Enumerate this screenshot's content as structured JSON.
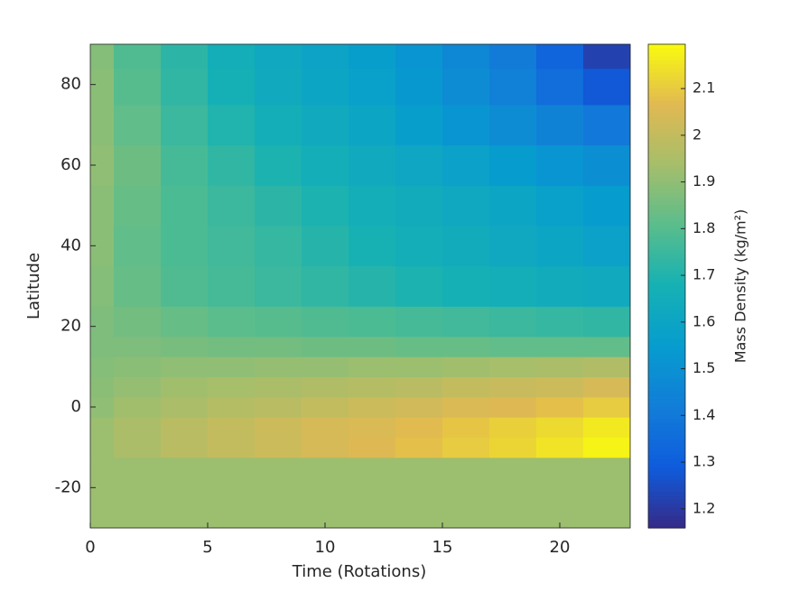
{
  "chart_data": {
    "type": "heatmap",
    "xlabel": "Time (Rotations)",
    "ylabel": "Latitude",
    "colorbar_label": "Mass Density (kg/m²)",
    "x": [
      0,
      2,
      4,
      6,
      8,
      10,
      12,
      14,
      16,
      18,
      20,
      22
    ],
    "y": [
      -25,
      -15,
      -10,
      -5,
      0,
      5,
      10,
      15,
      20,
      30,
      40,
      50,
      60,
      70,
      80,
      88
    ],
    "z": [
      [
        1.92,
        1.92,
        1.92,
        1.92,
        1.92,
        1.92,
        1.92,
        1.92,
        1.92,
        1.92,
        1.92,
        1.92
      ],
      [
        1.92,
        1.92,
        1.92,
        1.92,
        1.92,
        1.92,
        1.92,
        1.92,
        1.92,
        1.92,
        1.92,
        1.92
      ],
      [
        1.92,
        1.95,
        1.98,
        2.0,
        2.02,
        2.04,
        2.06,
        2.08,
        2.1,
        2.12,
        2.15,
        2.18
      ],
      [
        1.92,
        1.95,
        1.98,
        2.0,
        2.02,
        2.04,
        2.05,
        2.07,
        2.09,
        2.11,
        2.13,
        2.16
      ],
      [
        1.9,
        1.93,
        1.95,
        1.97,
        1.98,
        2.0,
        2.02,
        2.03,
        2.05,
        2.06,
        2.08,
        2.1
      ],
      [
        1.89,
        1.91,
        1.93,
        1.94,
        1.95,
        1.96,
        1.97,
        1.98,
        2.0,
        2.01,
        2.02,
        2.04
      ],
      [
        1.88,
        1.89,
        1.9,
        1.9,
        1.91,
        1.91,
        1.92,
        1.92,
        1.93,
        1.94,
        1.95,
        1.96
      ],
      [
        1.87,
        1.87,
        1.86,
        1.85,
        1.85,
        1.84,
        1.84,
        1.83,
        1.83,
        1.82,
        1.82,
        1.82
      ],
      [
        1.87,
        1.85,
        1.83,
        1.81,
        1.8,
        1.79,
        1.78,
        1.77,
        1.76,
        1.75,
        1.74,
        1.73
      ],
      [
        1.88,
        1.83,
        1.79,
        1.77,
        1.75,
        1.73,
        1.71,
        1.69,
        1.67,
        1.66,
        1.64,
        1.63
      ],
      [
        1.89,
        1.82,
        1.78,
        1.76,
        1.74,
        1.71,
        1.68,
        1.66,
        1.64,
        1.62,
        1.6,
        1.58
      ],
      [
        1.89,
        1.83,
        1.78,
        1.75,
        1.72,
        1.69,
        1.66,
        1.64,
        1.62,
        1.6,
        1.57,
        1.55
      ],
      [
        1.9,
        1.84,
        1.77,
        1.73,
        1.69,
        1.66,
        1.63,
        1.61,
        1.58,
        1.55,
        1.52,
        1.49
      ],
      [
        1.89,
        1.82,
        1.75,
        1.7,
        1.66,
        1.63,
        1.6,
        1.56,
        1.52,
        1.48,
        1.44,
        1.4
      ],
      [
        1.89,
        1.8,
        1.73,
        1.67,
        1.63,
        1.6,
        1.57,
        1.53,
        1.48,
        1.43,
        1.36,
        1.28
      ],
      [
        1.88,
        1.79,
        1.72,
        1.66,
        1.62,
        1.59,
        1.56,
        1.52,
        1.46,
        1.41,
        1.32,
        1.22
      ]
    ],
    "xlim": [
      0,
      23
    ],
    "ylim": [
      -30,
      90
    ],
    "xticks": [
      0,
      5,
      10,
      15,
      20
    ],
    "yticks": [
      -20,
      0,
      20,
      40,
      60,
      80
    ],
    "clim": [
      1.159,
      2.195
    ],
    "cticks": [
      1.2,
      1.3,
      1.4,
      1.5,
      1.6,
      1.7,
      1.8,
      1.9,
      2,
      2.1
    ],
    "colormap": [
      "#352a87",
      "#0f5cdd",
      "#127dd8",
      "#079ccf",
      "#15b1b4",
      "#59bd8c",
      "#a5be6b",
      "#e1b952",
      "#f9fb0e"
    ]
  }
}
